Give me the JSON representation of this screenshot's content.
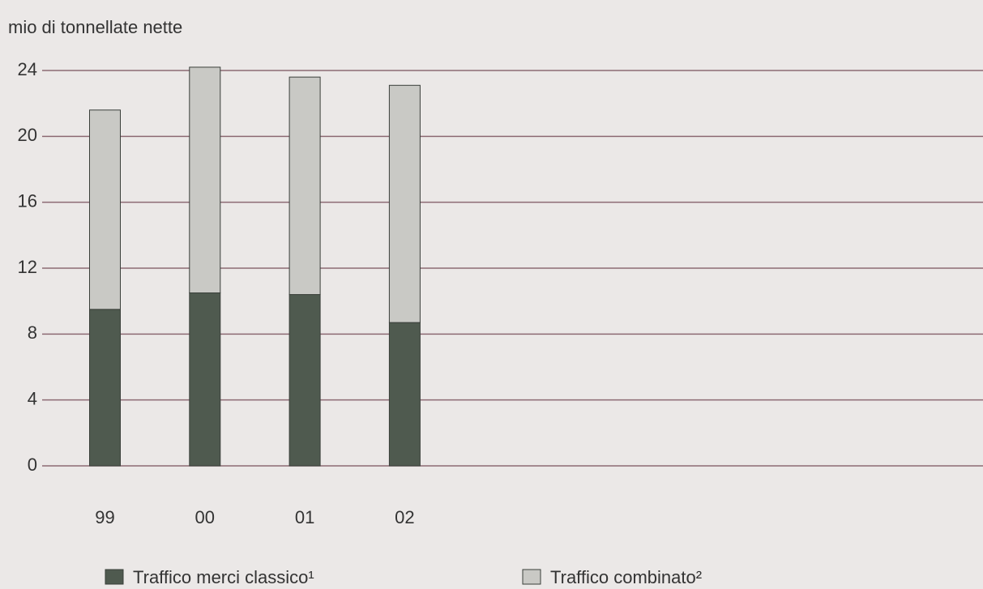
{
  "chart_data": {
    "type": "stacked_bar",
    "y_label": "mio di tonnellate nette",
    "categories": [
      "99",
      "00",
      "01",
      "02"
    ],
    "series": [
      {
        "name": "Traffico merci classico¹",
        "color": "#4f5a4f",
        "values": [
          9.5,
          10.5,
          10.4,
          8.7
        ]
      },
      {
        "name": "Traffico combinato²",
        "color": "#c9c9c5",
        "values": [
          12.1,
          13.7,
          13.2,
          14.4
        ]
      }
    ],
    "ylim": [
      0,
      24
    ],
    "yticks": [
      0,
      4,
      8,
      12,
      16,
      20,
      24
    ],
    "grid": true
  }
}
